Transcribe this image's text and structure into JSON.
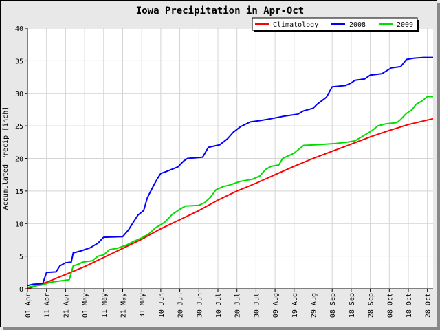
{
  "chart_data": {
    "type": "line",
    "title": "Iowa Precipitation in Apr-Oct",
    "xlabel": "",
    "ylabel": "Accumulated Precip [inch]",
    "ylim": [
      0,
      40
    ],
    "yticks": [
      0,
      5,
      10,
      15,
      20,
      25,
      30,
      35,
      40
    ],
    "xlim_day": [
      0,
      213
    ],
    "xticks": [
      {
        "day": 0,
        "label": "01 Apr"
      },
      {
        "day": 10,
        "label": "11 Apr"
      },
      {
        "day": 20,
        "label": "21 Apr"
      },
      {
        "day": 30,
        "label": "01 May"
      },
      {
        "day": 40,
        "label": "11 May"
      },
      {
        "day": 50,
        "label": "21 May"
      },
      {
        "day": 60,
        "label": "31 May"
      },
      {
        "day": 70,
        "label": "10 Jun"
      },
      {
        "day": 80,
        "label": "20 Jun"
      },
      {
        "day": 90,
        "label": "30 Jun"
      },
      {
        "day": 100,
        "label": "10 Jul"
      },
      {
        "day": 110,
        "label": "20 Jul"
      },
      {
        "day": 120,
        "label": "30 Jul"
      },
      {
        "day": 130,
        "label": "09 Aug"
      },
      {
        "day": 140,
        "label": "19 Aug"
      },
      {
        "day": 150,
        "label": "29 Aug"
      },
      {
        "day": 160,
        "label": "08 Sep"
      },
      {
        "day": 170,
        "label": "18 Sep"
      },
      {
        "day": 180,
        "label": "28 Sep"
      },
      {
        "day": 190,
        "label": "08 Oct"
      },
      {
        "day": 200,
        "label": "18 Oct"
      },
      {
        "day": 210,
        "label": "28 Oct"
      }
    ],
    "grid": true,
    "legend_placement": "top-right",
    "series": [
      {
        "name": "Climatology",
        "color": "#ff0000",
        "points": [
          [
            0,
            0.0
          ],
          [
            10,
            1.0
          ],
          [
            20,
            2.2
          ],
          [
            30,
            3.4
          ],
          [
            40,
            4.8
          ],
          [
            50,
            6.2
          ],
          [
            60,
            7.6
          ],
          [
            70,
            9.2
          ],
          [
            80,
            10.6
          ],
          [
            90,
            12.0
          ],
          [
            100,
            13.6
          ],
          [
            110,
            15.0
          ],
          [
            120,
            16.2
          ],
          [
            130,
            17.5
          ],
          [
            140,
            18.8
          ],
          [
            150,
            20.0
          ],
          [
            160,
            21.1
          ],
          [
            170,
            22.2
          ],
          [
            180,
            23.3
          ],
          [
            190,
            24.3
          ],
          [
            200,
            25.2
          ],
          [
            213,
            26.1
          ]
        ]
      },
      {
        "name": "2008",
        "color": "#0000ff",
        "points": [
          [
            0,
            0.5
          ],
          [
            3,
            0.7
          ],
          [
            8,
            0.8
          ],
          [
            10,
            2.5
          ],
          [
            15,
            2.6
          ],
          [
            17,
            3.5
          ],
          [
            20,
            4.0
          ],
          [
            23,
            4.1
          ],
          [
            24,
            5.5
          ],
          [
            28,
            5.8
          ],
          [
            33,
            6.3
          ],
          [
            37,
            7.0
          ],
          [
            40,
            7.9
          ],
          [
            50,
            8.0
          ],
          [
            53,
            9.0
          ],
          [
            56,
            10.4
          ],
          [
            58,
            11.3
          ],
          [
            61,
            12.0
          ],
          [
            63,
            14.0
          ],
          [
            66,
            15.7
          ],
          [
            68,
            16.8
          ],
          [
            70,
            17.7
          ],
          [
            73,
            18.0
          ],
          [
            79,
            18.7
          ],
          [
            82,
            19.6
          ],
          [
            84,
            20.0
          ],
          [
            88,
            20.1
          ],
          [
            92,
            20.2
          ],
          [
            95,
            21.7
          ],
          [
            101,
            22.1
          ],
          [
            105,
            23.0
          ],
          [
            108,
            24.0
          ],
          [
            112,
            24.9
          ],
          [
            117,
            25.6
          ],
          [
            122,
            25.8
          ],
          [
            128,
            26.1
          ],
          [
            135,
            26.5
          ],
          [
            142,
            26.8
          ],
          [
            145,
            27.3
          ],
          [
            150,
            27.7
          ],
          [
            152,
            28.3
          ],
          [
            157,
            29.4
          ],
          [
            160,
            31.0
          ],
          [
            167,
            31.2
          ],
          [
            170,
            31.6
          ],
          [
            172,
            32.0
          ],
          [
            177,
            32.2
          ],
          [
            180,
            32.8
          ],
          [
            186,
            33.0
          ],
          [
            191,
            33.9
          ],
          [
            196,
            34.1
          ],
          [
            199,
            35.2
          ],
          [
            203,
            35.4
          ],
          [
            208,
            35.5
          ],
          [
            213,
            35.5
          ]
        ]
      },
      {
        "name": "2009",
        "color": "#00dd00",
        "points": [
          [
            0,
            0.2
          ],
          [
            3,
            0.4
          ],
          [
            8,
            0.6
          ],
          [
            12,
            1.0
          ],
          [
            17,
            1.2
          ],
          [
            22,
            1.4
          ],
          [
            24,
            3.5
          ],
          [
            27,
            3.8
          ],
          [
            29,
            4.1
          ],
          [
            34,
            4.3
          ],
          [
            37,
            5.0
          ],
          [
            40,
            5.2
          ],
          [
            43,
            6.0
          ],
          [
            47,
            6.2
          ],
          [
            52,
            6.7
          ],
          [
            56,
            7.3
          ],
          [
            60,
            7.8
          ],
          [
            64,
            8.5
          ],
          [
            67,
            9.3
          ],
          [
            72,
            10.2
          ],
          [
            76,
            11.4
          ],
          [
            80,
            12.2
          ],
          [
            83,
            12.7
          ],
          [
            90,
            12.8
          ],
          [
            93,
            13.2
          ],
          [
            96,
            14.0
          ],
          [
            99,
            15.2
          ],
          [
            103,
            15.7
          ],
          [
            106,
            15.9
          ],
          [
            109,
            16.2
          ],
          [
            112,
            16.5
          ],
          [
            118,
            16.8
          ],
          [
            122,
            17.3
          ],
          [
            125,
            18.3
          ],
          [
            128,
            18.8
          ],
          [
            132,
            19.0
          ],
          [
            134,
            20.0
          ],
          [
            140,
            20.8
          ],
          [
            145,
            22.0
          ],
          [
            152,
            22.1
          ],
          [
            162,
            22.3
          ],
          [
            168,
            22.5
          ],
          [
            172,
            22.7
          ],
          [
            176,
            23.4
          ],
          [
            181,
            24.3
          ],
          [
            184,
            25.0
          ],
          [
            188,
            25.3
          ],
          [
            194,
            25.5
          ],
          [
            196,
            26.0
          ],
          [
            199,
            26.9
          ],
          [
            202,
            27.5
          ],
          [
            204,
            28.3
          ],
          [
            207,
            28.8
          ],
          [
            210,
            29.5
          ],
          [
            213,
            29.5
          ]
        ]
      }
    ]
  }
}
